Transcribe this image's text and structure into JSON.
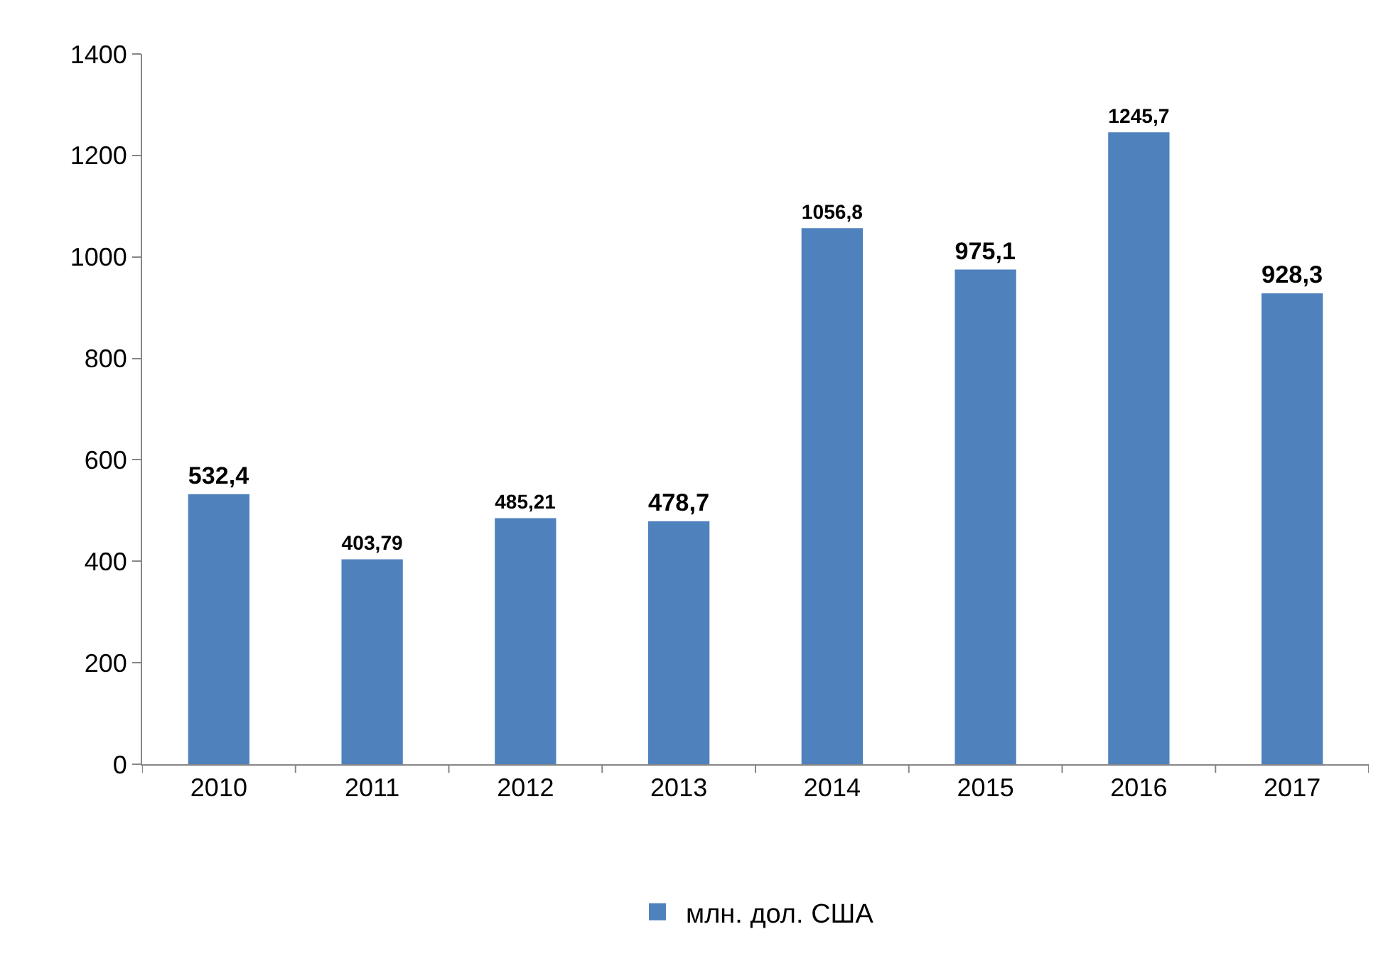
{
  "chart_data": {
    "type": "bar",
    "categories": [
      "2010",
      "2011",
      "2012",
      "2013",
      "2014",
      "2015",
      "2016",
      "2017"
    ],
    "series": [
      {
        "name": "млн. дол. США",
        "color": "#4f81bd",
        "values": [
          532.4,
          403.79,
          485.21,
          478.7,
          1056.8,
          975.1,
          1245.7,
          928.3
        ],
        "value_labels": [
          "532,4",
          "403,79",
          "485,21",
          "478,7",
          "1056,8",
          "975,1",
          "1245,7",
          "928,3"
        ]
      }
    ],
    "ylim": [
      0,
      1400
    ],
    "yticks": [
      0,
      200,
      400,
      600,
      800,
      1000,
      1200,
      1400
    ],
    "grid": false,
    "legend": "bottom"
  }
}
